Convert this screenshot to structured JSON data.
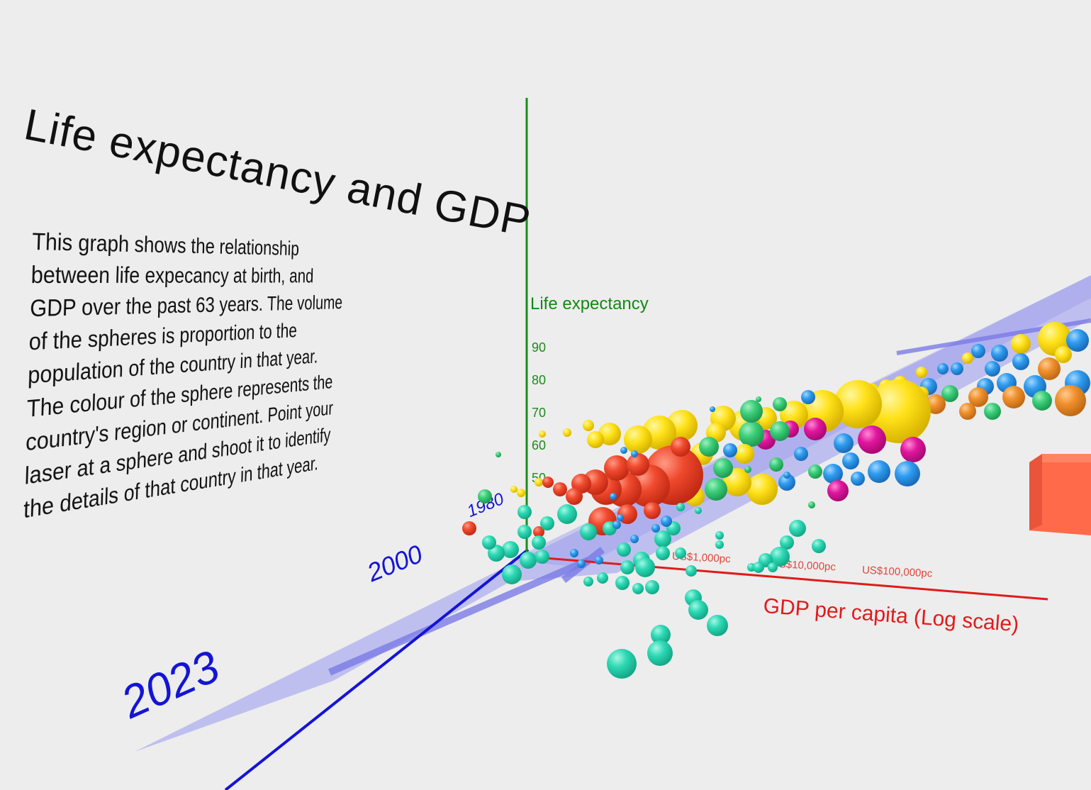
{
  "panel": {
    "title": "Life expectancy and GDP",
    "description": "This graph shows the relationship between life expecancy at birth, and GDP over the past 63 years. The volume of the spheres is proportion to the population of the country in that year. The colour of the sphere represents the country's region or continent. Point your laser at a sphere and shoot it to identify the details of that country in that year."
  },
  "axes": {
    "y_title": "Life expectancy",
    "y_ticks": [
      "90",
      "80",
      "70",
      "60",
      "50"
    ],
    "x_title": "GDP per capita (Log scale)",
    "x_ticks": [
      "US$1,000pc",
      "US$10,000pc",
      "US$100,000pc"
    ],
    "year_labels": [
      "1980",
      "2000",
      "2023"
    ]
  },
  "colors": {
    "background": "#ededed",
    "life_axis": "#1a8c1a",
    "gdp_axis": "#e01b1b",
    "year_axis": "#1414d6",
    "plane": "#a6a6f0",
    "sphere_yellow": "#ffe21a",
    "sphere_red": "#f04a2e",
    "sphere_teal": "#2ed9b5",
    "sphere_green": "#3ccf7a",
    "sphere_magenta": "#e0169e",
    "sphere_blue": "#2e9cf0",
    "sphere_orange": "#f0902e",
    "box": "#ff6a4a"
  }
}
